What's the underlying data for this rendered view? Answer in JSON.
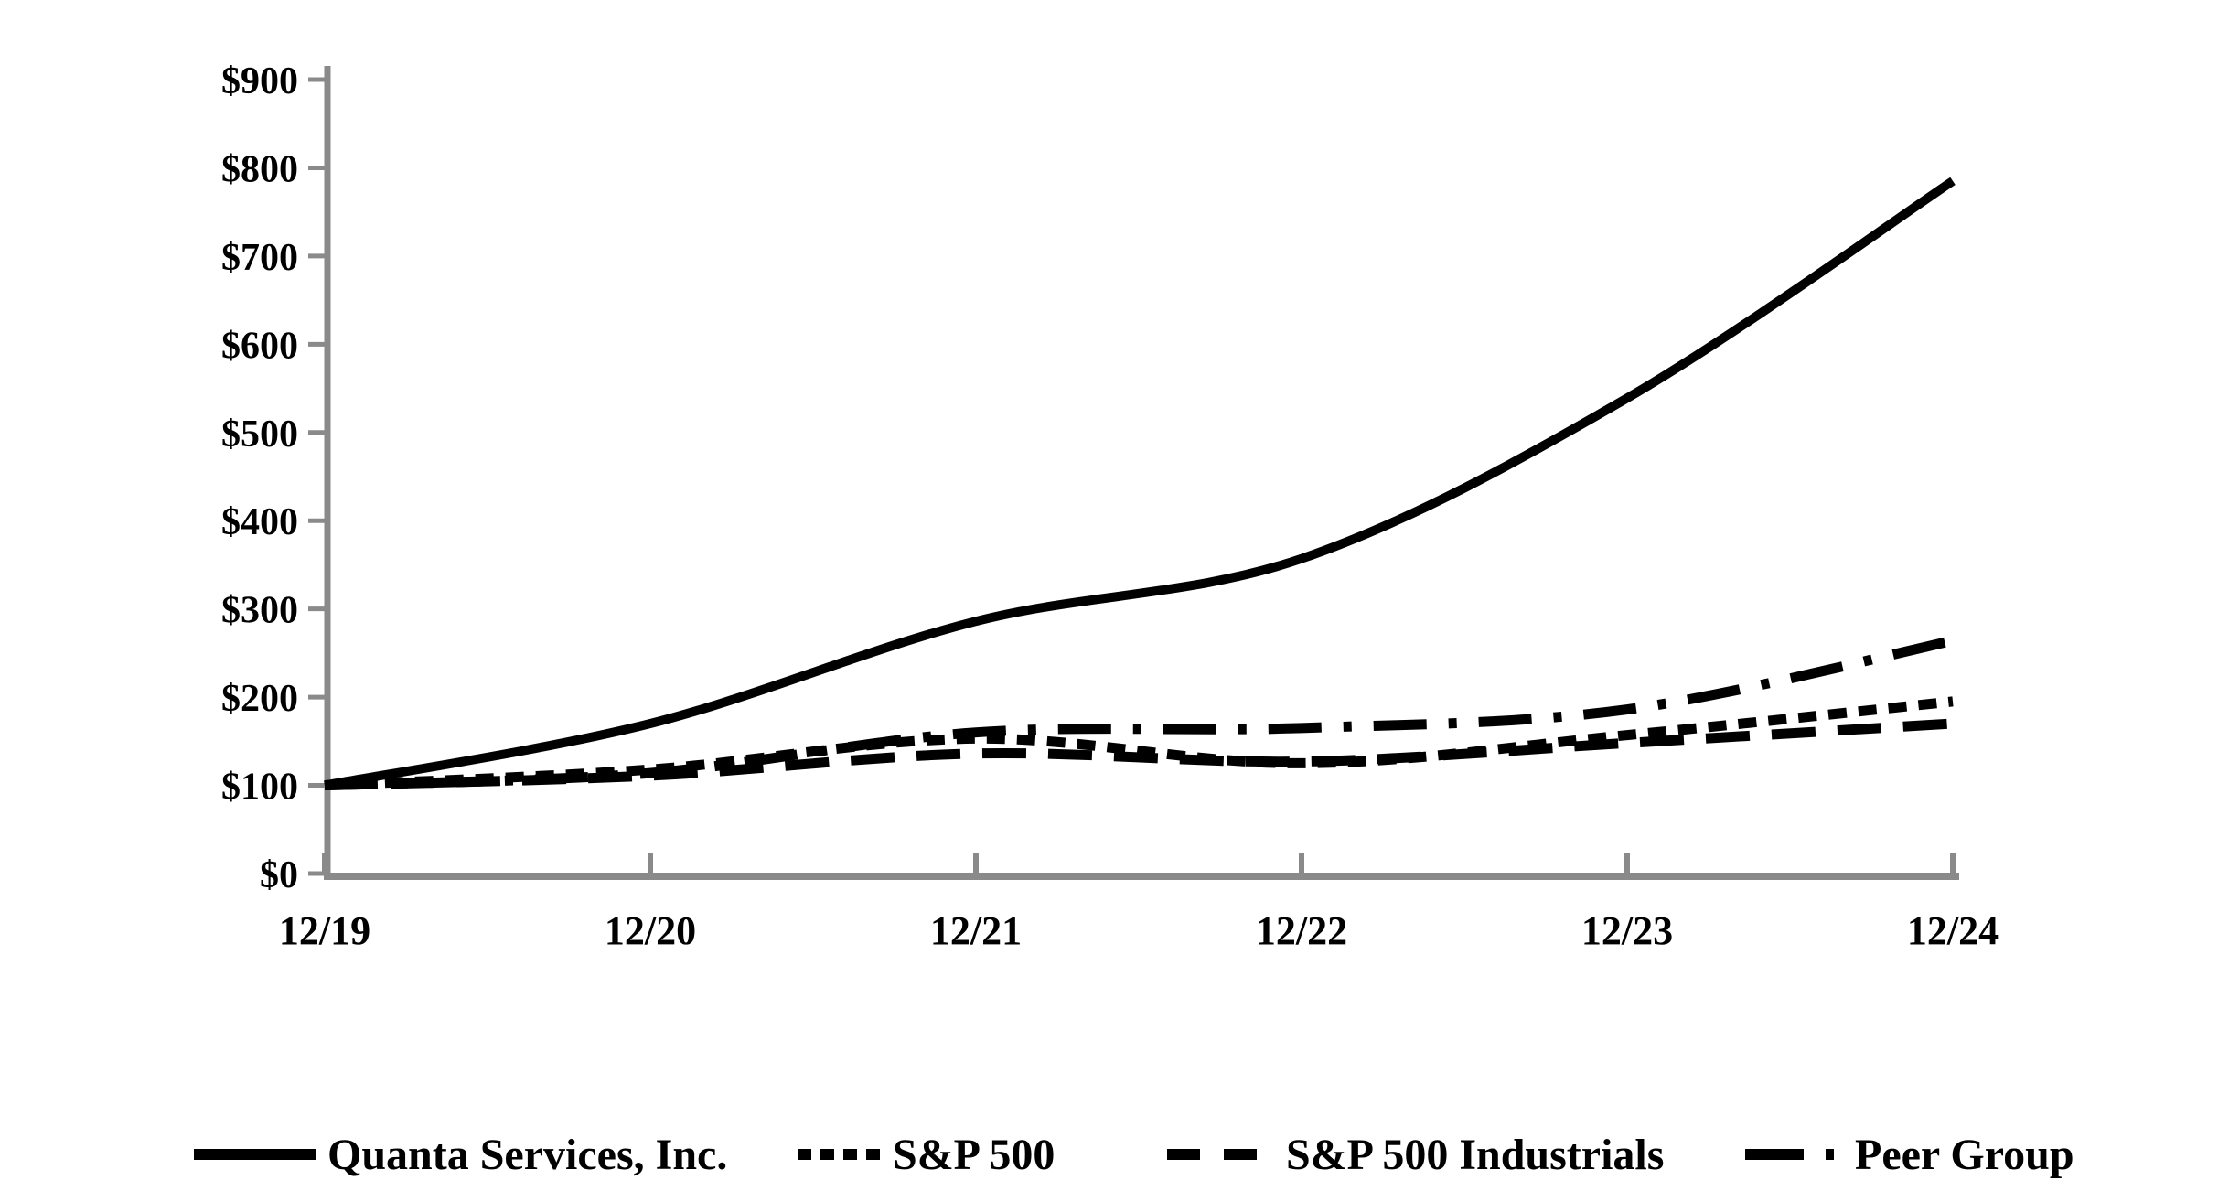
{
  "chart_data": {
    "type": "line",
    "title": "",
    "xlabel": "",
    "ylabel": "",
    "x_categories": [
      "12/19",
      "12/20",
      "12/21",
      "12/22",
      "12/23",
      "12/24"
    ],
    "y_ticks": [
      "$0",
      "$100",
      "$200",
      "$300",
      "$400",
      "$500",
      "$600",
      "$700",
      "$800",
      "$900"
    ],
    "ylim": [
      0,
      900
    ],
    "y_tick_step": 100,
    "grid": "off",
    "legend_position": "bottom",
    "background_color": "#ffffff",
    "axis_color": "#8a8a8a",
    "series_color": "#000000",
    "base_index_value": 100,
    "series": [
      {
        "name": "Quanta Services, Inc.",
        "line_style": "solid",
        "values": [
          100,
          170,
          286,
          357,
          539,
          785
        ]
      },
      {
        "name": "S&P 500",
        "line_style": "short-dash",
        "values": [
          100,
          118,
          153,
          125,
          157,
          195
        ]
      },
      {
        "name": "S&P 500 Industrials",
        "line_style": "long-dash",
        "values": [
          100,
          111,
          136,
          127,
          148,
          170
        ]
      },
      {
        "name": "Peer Group",
        "line_style": "dash-dot",
        "values": [
          100,
          114,
          160,
          165,
          186,
          264
        ]
      }
    ]
  }
}
